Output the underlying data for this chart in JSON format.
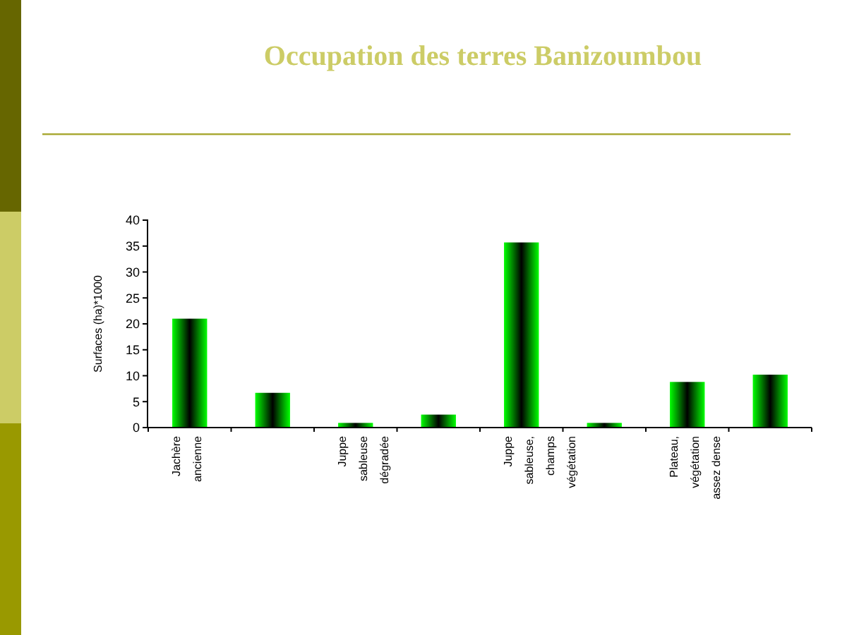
{
  "chart_data": {
    "type": "bar",
    "title": "Occupation des terres Banizoumbou",
    "ylabel": "Surfaces (ha)*1000",
    "categories": [
      "Jachère\nancienne",
      null,
      "Juppe\nsableuse\ndégradée",
      null,
      "Juppe\nsableuse,\nchamps\nvégétation",
      null,
      "Plateau,\nvégétation\nassez dense",
      null
    ],
    "values": [
      21,
      6.7,
      0.9,
      2.5,
      35.7,
      0.9,
      8.8,
      10.2
    ],
    "color": "#00ff00",
    "ylim": [
      0,
      40
    ],
    "yticks": [
      0,
      5,
      10,
      15,
      20,
      25,
      30,
      35,
      40
    ],
    "grid": false
  }
}
